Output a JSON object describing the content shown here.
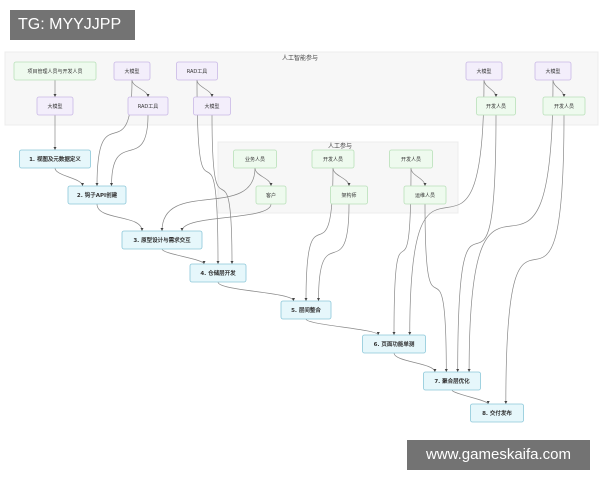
{
  "watermarks": {
    "top_left": "TG: MYYJJPP",
    "bottom_right": "www.gameskaifa.com"
  },
  "subgraphs": [
    {
      "id": "ai",
      "label": "人工智能参与"
    },
    {
      "id": "human",
      "label": "人工参与"
    }
  ],
  "nodes": [
    {
      "id": "pm",
      "label": "项目管理人员与开发人员",
      "kind": "human"
    },
    {
      "id": "llm1",
      "label": "大模型",
      "kind": "ai"
    },
    {
      "id": "rag1",
      "label": "RAD工具",
      "kind": "ai"
    },
    {
      "id": "llm2",
      "label": "大模型",
      "kind": "ai"
    },
    {
      "id": "rag2",
      "label": "RAD工具",
      "kind": "ai"
    },
    {
      "id": "llm3",
      "label": "大模型",
      "kind": "ai"
    },
    {
      "id": "llm4",
      "label": "大模型",
      "kind": "ai"
    },
    {
      "id": "dev1",
      "label": "开发人员",
      "kind": "human"
    },
    {
      "id": "llm5",
      "label": "大模型",
      "kind": "ai"
    },
    {
      "id": "dev2",
      "label": "开发人员",
      "kind": "human"
    },
    {
      "id": "biz",
      "label": "业务人员",
      "kind": "human"
    },
    {
      "id": "cust",
      "label": "客户",
      "kind": "human"
    },
    {
      "id": "dev3",
      "label": "开发人员",
      "kind": "human"
    },
    {
      "id": "arch",
      "label": "架构师",
      "kind": "human"
    },
    {
      "id": "dev4",
      "label": "开发人员",
      "kind": "human"
    },
    {
      "id": "ops",
      "label": "运维人员",
      "kind": "human"
    },
    {
      "id": "s1",
      "label": "1. 视图及元数据定义",
      "kind": "step"
    },
    {
      "id": "s2",
      "label": "2. 钩子API创建",
      "kind": "step"
    },
    {
      "id": "s3",
      "label": "3. 原型设计与需求交互",
      "kind": "step"
    },
    {
      "id": "s4",
      "label": "4. 仓储层开发",
      "kind": "step"
    },
    {
      "id": "s5",
      "label": "5. 层间整合",
      "kind": "step"
    },
    {
      "id": "s6",
      "label": "6. 页面功能单测",
      "kind": "step"
    },
    {
      "id": "s7",
      "label": "7. 聚合层优化",
      "kind": "step"
    },
    {
      "id": "s8",
      "label": "8. 交付发布",
      "kind": "step"
    }
  ],
  "edges": [
    [
      "pm",
      "llm2"
    ],
    [
      "llm1",
      "rag2"
    ],
    [
      "rag1",
      "llm3"
    ],
    [
      "llm4",
      "dev1"
    ],
    [
      "llm5",
      "dev2"
    ],
    [
      "biz",
      "cust"
    ],
    [
      "dev3",
      "arch"
    ],
    [
      "dev4",
      "ops"
    ],
    [
      "llm2",
      "s1"
    ],
    [
      "s1",
      "s2"
    ],
    [
      "llm1",
      "s2"
    ],
    [
      "rag2",
      "s2"
    ],
    [
      "s2",
      "s3"
    ],
    [
      "biz",
      "s3"
    ],
    [
      "cust",
      "s3"
    ],
    [
      "s3",
      "s4"
    ],
    [
      "rag1",
      "s4"
    ],
    [
      "llm3",
      "s4"
    ],
    [
      "s4",
      "s5"
    ],
    [
      "dev3",
      "s5"
    ],
    [
      "arch",
      "s5"
    ],
    [
      "s5",
      "s6"
    ],
    [
      "dev4",
      "s6"
    ],
    [
      "llm4",
      "s6"
    ],
    [
      "s6",
      "s7"
    ],
    [
      "ops",
      "s7"
    ],
    [
      "dev1",
      "s7"
    ],
    [
      "llm5",
      "s7"
    ],
    [
      "s7",
      "s8"
    ],
    [
      "dev2",
      "s8"
    ]
  ],
  "colors": {
    "ai_fill": "#f3eefb",
    "ai_stroke": "#c9b8e6",
    "human_fill": "#eefaee",
    "human_stroke": "#b9e0b9",
    "step_fill": "#e6f7fb",
    "step_stroke": "#8cc7d9",
    "edge": "#888888"
  }
}
